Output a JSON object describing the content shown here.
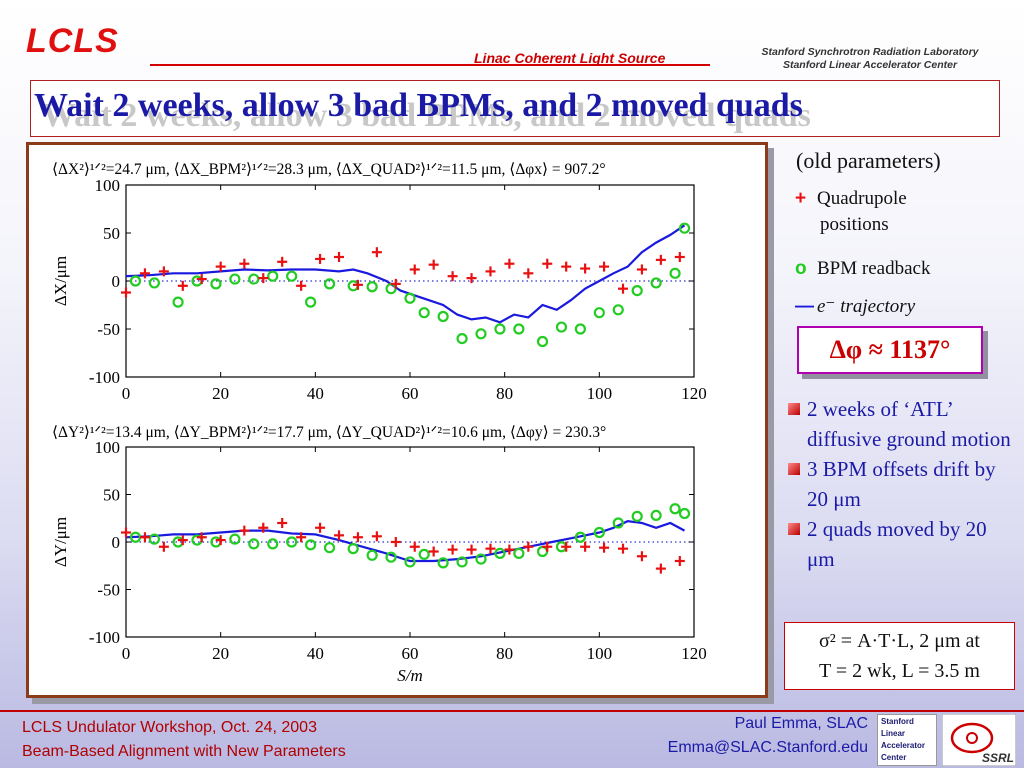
{
  "header": {
    "logo": "LCLS",
    "center": "Linac Coherent Light Source",
    "right_line1": "Stanford Synchrotron Radiation Laboratory",
    "right_line2": "Stanford Linear Accelerator Center"
  },
  "title": "Wait 2 weeks, allow 3 bad BPMs, and 2 moved quads",
  "legend": {
    "title": "(old parameters)",
    "quad_line1": "Quadrupole",
    "quad_line2": "positions",
    "bpm": "BPM readback",
    "traj_text": "e⁻ trajectory"
  },
  "dphi": "Δφ ≈ 1137°",
  "bullets": [
    "2 weeks of ‘ATL’ diffusive ground motion",
    "3 BPM offsets drift by 20 μm",
    "2 quads moved by 20 μm"
  ],
  "formula": {
    "line1": "σ² = A·T·L,  2 μm at",
    "line2": "T = 2 wk, L = 3.5 m"
  },
  "footer": {
    "left1": "LCLS Undulator Workshop, Oct. 24, 2003",
    "left2": "Beam-Based Alignment with New Parameters",
    "right1": "Paul Emma, SLAC",
    "right2": "Emma@SLAC.Stanford.edu",
    "slac_logo": [
      "Stanford",
      "Linear",
      "Accelerator",
      "Center"
    ],
    "ssrl_logo": "SSRL"
  },
  "colors": {
    "quad": "#e81010",
    "bpm": "#22cc22",
    "trajectory": "#1a1adf",
    "title": "#1a1aa6"
  },
  "chart_data": [
    {
      "type": "scatter",
      "title": "⟨ΔX²⟩¹ᐟ²=24.7 μm, ⟨ΔX_BPM²⟩¹ᐟ²=28.3 μm, ⟨ΔX_QUAD²⟩¹ᐟ²=11.5 μm, ⟨Δφx⟩ =  907.2°",
      "ylabel": "ΔX/μm",
      "xlim": [
        0,
        120
      ],
      "ylim": [
        -100,
        100
      ],
      "xticks": [
        "0",
        "20",
        "40",
        "60",
        "80",
        "100",
        "120"
      ],
      "yticks": [
        "100",
        "50",
        "0",
        "-50",
        "-100"
      ],
      "series": [
        {
          "name": "Quadrupole positions",
          "marker": "+",
          "x": [
            0,
            4,
            8,
            12,
            16,
            20,
            25,
            29,
            33,
            37,
            41,
            45,
            49,
            53,
            57,
            61,
            65,
            69,
            73,
            77,
            81,
            85,
            89,
            93,
            97,
            101,
            105,
            109,
            113,
            117
          ],
          "y": [
            -12,
            8,
            10,
            -5,
            2,
            15,
            18,
            3,
            20,
            -5,
            23,
            25,
            -4,
            30,
            -3,
            12,
            17,
            5,
            3,
            10,
            18,
            8,
            18,
            15,
            13,
            15,
            -8,
            12,
            22,
            25
          ]
        },
        {
          "name": "BPM readback",
          "marker": "o",
          "x": [
            2,
            6,
            11,
            15,
            19,
            23,
            27,
            31,
            35,
            39,
            43,
            48,
            52,
            56,
            60,
            63,
            67,
            71,
            75,
            79,
            83,
            88,
            92,
            96,
            100,
            104,
            108,
            112,
            116,
            118
          ],
          "y": [
            0,
            -2,
            -22,
            0,
            -3,
            2,
            2,
            5,
            5,
            -22,
            -3,
            -5,
            -6,
            -8,
            -18,
            -33,
            -37,
            -60,
            -55,
            -50,
            -50,
            -63,
            -48,
            -50,
            -33,
            -30,
            -10,
            -2,
            8,
            55
          ]
        },
        {
          "name": "e⁻ trajectory",
          "marker": "line",
          "x": [
            0,
            5,
            10,
            15,
            20,
            25,
            30,
            35,
            40,
            45,
            48,
            51,
            55,
            58,
            61,
            64,
            67,
            70,
            73,
            76,
            79,
            82,
            85,
            88,
            91,
            94,
            97,
            100,
            103,
            106,
            109,
            112,
            115,
            118
          ],
          "y": [
            5,
            6,
            8,
            8,
            10,
            12,
            11,
            12,
            12,
            10,
            12,
            8,
            0,
            -10,
            -15,
            -20,
            -25,
            -35,
            -40,
            -38,
            -43,
            -35,
            -38,
            -25,
            -30,
            -20,
            -8,
            0,
            8,
            15,
            30,
            40,
            48,
            58
          ]
        }
      ]
    },
    {
      "type": "scatter",
      "title": "⟨ΔY²⟩¹ᐟ²=13.4 μm, ⟨ΔY_BPM²⟩¹ᐟ²=17.7 μm, ⟨ΔY_QUAD²⟩¹ᐟ²=10.6 μm, ⟨Δφy⟩ =  230.3°",
      "ylabel": "ΔY/μm",
      "xlabel": "S/m",
      "xlim": [
        0,
        120
      ],
      "ylim": [
        -100,
        100
      ],
      "xticks": [
        "0",
        "20",
        "40",
        "60",
        "80",
        "100",
        "120"
      ],
      "yticks": [
        "100",
        "50",
        "0",
        "-50",
        "-100"
      ],
      "series": [
        {
          "name": "Quadrupole positions",
          "marker": "+",
          "x": [
            0,
            4,
            8,
            12,
            16,
            20,
            25,
            29,
            33,
            37,
            41,
            45,
            49,
            53,
            57,
            61,
            65,
            69,
            73,
            77,
            81,
            85,
            89,
            93,
            97,
            101,
            105,
            109,
            113,
            117
          ],
          "y": [
            10,
            5,
            -5,
            2,
            5,
            2,
            12,
            15,
            20,
            5,
            15,
            7,
            5,
            6,
            0,
            -5,
            -10,
            -8,
            -8,
            -7,
            -8,
            -5,
            -5,
            -5,
            -5,
            -6,
            -7,
            -15,
            -28,
            -20
          ],
          "x_fix": true
        },
        {
          "name": "BPM readback",
          "marker": "o",
          "x": [
            2,
            6,
            11,
            15,
            19,
            23,
            27,
            31,
            35,
            39,
            43,
            48,
            52,
            56,
            60,
            63,
            67,
            71,
            75,
            79,
            83,
            88,
            92,
            96,
            100,
            104,
            108,
            112,
            116,
            118
          ],
          "y": [
            5,
            3,
            0,
            2,
            0,
            3,
            -2,
            -2,
            0,
            -3,
            -6,
            -7,
            -14,
            -16,
            -21,
            -13,
            -22,
            -21,
            -18,
            -12,
            -12,
            -10,
            -5,
            5,
            10,
            20,
            27,
            28,
            35,
            30
          ],
          "x_fix": true
        },
        {
          "name": "e⁻ trajectory",
          "marker": "line",
          "x": [
            0,
            5,
            10,
            15,
            20,
            25,
            30,
            35,
            40,
            45,
            50,
            55,
            60,
            65,
            70,
            75,
            80,
            85,
            90,
            95,
            100,
            103,
            106,
            109,
            112,
            115,
            118
          ],
          "y": [
            5,
            6,
            8,
            8,
            10,
            12,
            12,
            9,
            8,
            2,
            -5,
            -12,
            -20,
            -20,
            -18,
            -15,
            -10,
            -5,
            0,
            5,
            10,
            15,
            22,
            20,
            15,
            20,
            12
          ]
        }
      ]
    }
  ]
}
